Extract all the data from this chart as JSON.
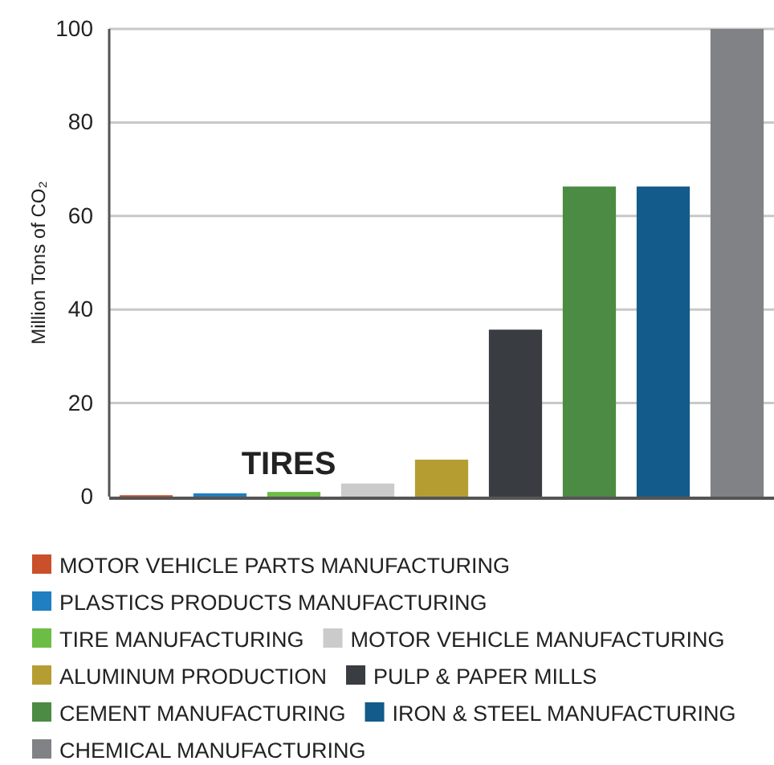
{
  "chart_data": {
    "type": "bar",
    "ylabel": "Million Tons of CO₂",
    "stacked": true,
    "categories": [
      null,
      null,
      null,
      null,
      null,
      null,
      null,
      null,
      null
    ],
    "series": [
      {
        "name": "MOTOR VEHICLE PARTS MANUFACTURING",
        "color": "#c9502a",
        "values": [
          0.3,
          null,
          null,
          null,
          null,
          null,
          null,
          null,
          null
        ]
      },
      {
        "name": "PLASTICS PRODUCTS MANUFACTURING",
        "color": "#1f7fc0",
        "values": [
          null,
          0.7,
          null,
          null,
          null,
          null,
          null,
          null,
          null
        ]
      },
      {
        "name": "TIRE MANUFACTURING",
        "color": "#6cbd45",
        "values": [
          null,
          null,
          1,
          null,
          null,
          null,
          null,
          null,
          null
        ]
      },
      {
        "name": "MOTOR VEHICLE MANUFACTURING",
        "color": "#cbcbcb",
        "values": [
          null,
          null,
          null,
          2.8,
          null,
          null,
          null,
          null,
          null
        ]
      },
      {
        "name": "ALUMINUM PRODUCTION",
        "color": "#b59d32",
        "values": [
          null,
          null,
          null,
          null,
          7.9,
          null,
          null,
          null,
          null
        ]
      },
      {
        "name": "PULP & PAPER MILLS",
        "color": "#393d42",
        "values": [
          null,
          null,
          null,
          null,
          null,
          35.7,
          null,
          null,
          null
        ]
      },
      {
        "name": "CEMENT MANUFACTURING",
        "color": "#4b8b43",
        "values": [
          null,
          null,
          null,
          null,
          null,
          null,
          66.3,
          null,
          null
        ]
      },
      {
        "name": "IRON & STEEL MANUFACTURING",
        "color": "#125b8a",
        "values": [
          null,
          null,
          null,
          null,
          null,
          null,
          null,
          66.3,
          null
        ]
      },
      {
        "name": "CHEMICAL MANUFACTURING",
        "color": "#818285",
        "values": [
          null,
          null,
          null,
          null,
          null,
          null,
          null,
          null,
          100
        ]
      }
    ],
    "ylim": [
      0,
      100
    ],
    "yticks": [
      0,
      20,
      40,
      60,
      80,
      100
    ],
    "grid": "y",
    "legend": "bottom",
    "tick_labels": "y",
    "annotations": [
      "TIRES"
    ]
  }
}
